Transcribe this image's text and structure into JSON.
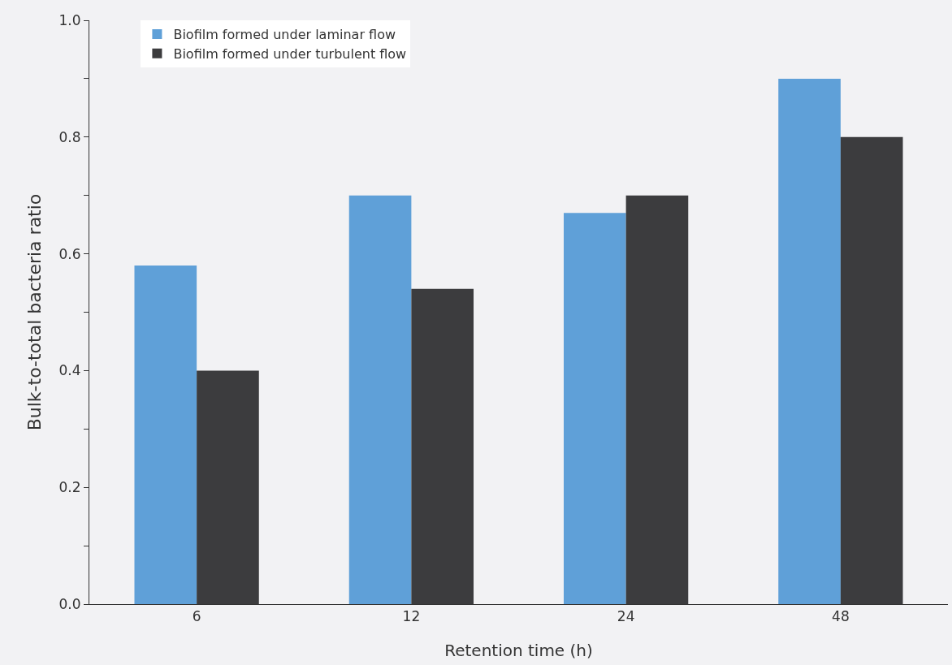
{
  "chart_data": {
    "type": "bar",
    "xlabel": "Retention time (h)",
    "ylabel": "Bulk-to-total bacteria ratio",
    "categories": [
      "6",
      "12",
      "24",
      "48"
    ],
    "series": [
      {
        "name": "Biofilm formed under laminar flow",
        "color": "#5fa0d8",
        "values": [
          0.58,
          0.7,
          0.67,
          0.9
        ]
      },
      {
        "name": "Biofilm formed under turbulent flow",
        "color": "#3c3c3e",
        "values": [
          0.4,
          0.54,
          0.7,
          0.8
        ]
      }
    ],
    "ylim": [
      0,
      1.0
    ],
    "yticks": [
      {
        "value": 0,
        "label": "0.0"
      },
      {
        "value": 0.1,
        "label": null
      },
      0.2,
      {
        "value": 0.3,
        "label": null
      },
      0.4,
      {
        "value": 0.5,
        "label": null
      },
      0.6,
      {
        "value": 0.7,
        "label": null
      },
      0.8,
      {
        "value": 0.9,
        "label": null
      },
      {
        "value": 1.0,
        "label": "1.0"
      }
    ],
    "grid": false,
    "legend": "top left"
  }
}
